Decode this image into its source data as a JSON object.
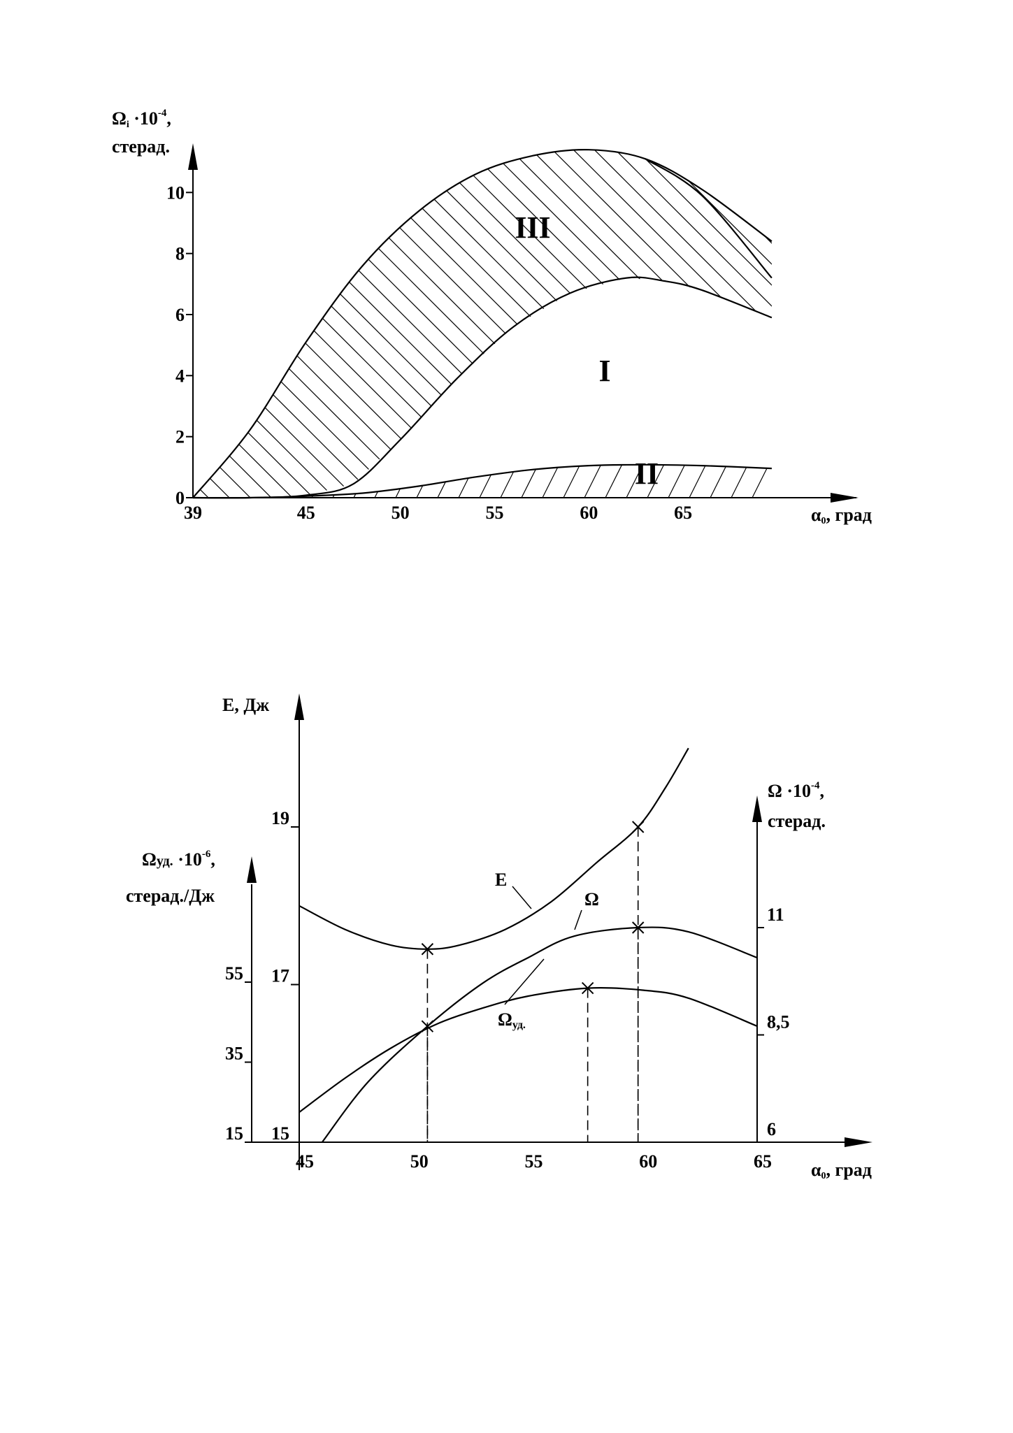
{
  "chart_data": [
    {
      "type": "area",
      "title": "",
      "y_axis": {
        "label_prefix": "Ω",
        "label_sub": "i",
        "label_multiplier": "·10",
        "label_exp": "-4",
        "label_comma": ",",
        "unit": "стерад.",
        "ticks": [
          "0",
          "2",
          "4",
          "6",
          "8",
          "10"
        ],
        "ylim": [
          0,
          12
        ]
      },
      "x_axis": {
        "label_prefix": "α",
        "label_sub": "0",
        "label_rest": ", град",
        "ticks": [
          "39",
          "45",
          "50",
          "55",
          "60",
          "65"
        ],
        "xlim": [
          39,
          70
        ]
      },
      "regions": [
        "I",
        "II",
        "III"
      ],
      "series": [
        {
          "key": "top",
          "x": [
            39,
            42,
            45,
            48,
            51,
            54,
            57,
            60,
            63,
            66,
            69.7
          ],
          "y": [
            0,
            2.2,
            5.1,
            7.6,
            9.4,
            10.6,
            11.2,
            11.4,
            11.1,
            10.1,
            8.4
          ]
        },
        {
          "key": "middle",
          "x": [
            39,
            42,
            45,
            47.5,
            50,
            53,
            56,
            59,
            62,
            64,
            66,
            69.7
          ],
          "y": [
            0,
            0,
            0.08,
            0.45,
            1.9,
            3.9,
            5.6,
            6.7,
            7.2,
            7.1,
            6.8,
            5.9
          ]
        },
        {
          "key": "bottom",
          "x": [
            39,
            42,
            45,
            48,
            51,
            54,
            57,
            60,
            63,
            66,
            69.7
          ],
          "y": [
            0,
            0,
            0.05,
            0.15,
            0.38,
            0.68,
            0.92,
            1.05,
            1.08,
            1.05,
            0.96
          ]
        },
        {
          "key": "upper-lower",
          "x": [
            63,
            66,
            69.7
          ],
          "y": [
            11.1,
            9.9,
            7.2
          ]
        }
      ]
    },
    {
      "type": "line",
      "title": "",
      "x_axis": {
        "label_prefix": "α",
        "label_sub": "0",
        "label_rest": ", град",
        "ticks": [
          "45",
          "50",
          "55",
          "60",
          "65"
        ],
        "xlim": [
          45,
          65
        ]
      },
      "y_left_E": {
        "label": "E, Дж",
        "ticks": [
          "15",
          "17",
          "19"
        ],
        "ylim": [
          15,
          19.5
        ]
      },
      "y_left_specific": {
        "label_prefix": "Ω",
        "label_sub": "уд.",
        "label_multiplier": " ·10",
        "label_exp": "-6",
        "label_comma": ",",
        "unit": "стерад./Дж",
        "ticks": [
          "15",
          "35",
          "55"
        ],
        "ylim": [
          15,
          55
        ]
      },
      "y_right_omega": {
        "label_prefix": "Ω",
        "label_multiplier": " ·10",
        "label_exp": "-4",
        "label_comma": ",",
        "unit": "стерад.",
        "ticks": [
          "6",
          "8,5",
          "11"
        ],
        "ylim": [
          6,
          11
        ]
      },
      "series": [
        {
          "name": "E",
          "x": [
            45,
            47,
            49,
            50.6,
            52,
            54,
            56,
            58,
            59.8,
            61,
            62
          ],
          "y": [
            18.0,
            17.7,
            17.5,
            17.45,
            17.5,
            17.7,
            18.05,
            18.55,
            19.0,
            19.5,
            20.0
          ]
        },
        {
          "name": "Ω",
          "x": [
            46,
            48,
            50.6,
            53,
            55,
            57,
            59.8,
            62,
            65
          ],
          "y": [
            6.0,
            7.4,
            8.7,
            9.7,
            10.3,
            10.8,
            11.0,
            10.9,
            10.3
          ]
        },
        {
          "name": "Ωуд.",
          "x": [
            45,
            47,
            49,
            51,
            53,
            55,
            57.6,
            60,
            62,
            65
          ],
          "y": [
            22.5,
            31,
            38.5,
            44.5,
            48.5,
            51.5,
            53.5,
            53.0,
            51.0,
            44.0
          ]
        }
      ],
      "markers": [
        {
          "series": "E",
          "x": 50.6,
          "y": 17.45
        },
        {
          "series": "Ω",
          "x": 50.6,
          "y": 8.7
        },
        {
          "series": "E",
          "x": 59.8,
          "y": 19.0
        },
        {
          "series": "Ω",
          "x": 59.8,
          "y": 11.0
        },
        {
          "series": "Ωуд.",
          "x": 57.6,
          "y": 53.5
        }
      ],
      "curve_labels": [
        {
          "text_main": "E",
          "text_sub": ""
        },
        {
          "text_main": "Ω",
          "text_sub": ""
        },
        {
          "text_main": "Ω",
          "text_sub": "уд."
        }
      ]
    }
  ]
}
